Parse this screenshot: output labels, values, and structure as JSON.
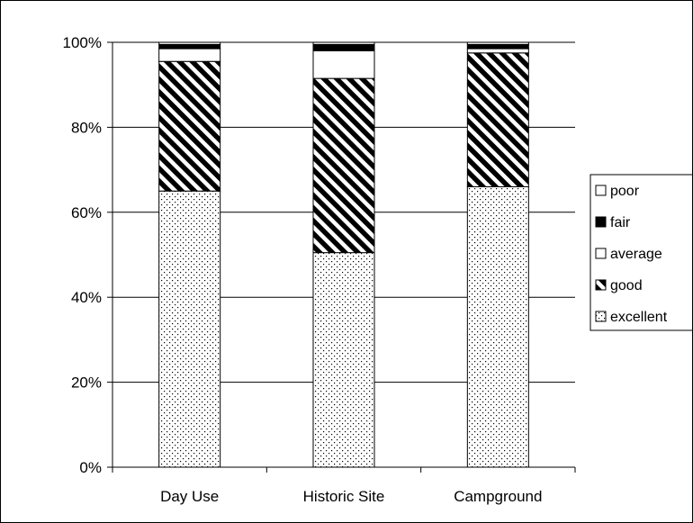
{
  "chart_data": {
    "type": "bar",
    "stacked": true,
    "percent": true,
    "categories": [
      "Day Use",
      "Historic Site",
      "Campground"
    ],
    "series": [
      {
        "name": "excellent",
        "values": [
          65,
          50.5,
          66
        ],
        "pattern": "dots",
        "color": "#ffffff"
      },
      {
        "name": "good",
        "values": [
          30.5,
          41,
          31.5
        ],
        "pattern": "diagonal-stripes",
        "color": "#000000"
      },
      {
        "name": "average",
        "values": [
          3,
          6.5,
          1
        ],
        "pattern": "solid",
        "color": "#ffffff"
      },
      {
        "name": "fair",
        "values": [
          1,
          1.5,
          1
        ],
        "pattern": "solid",
        "color": "#000000"
      },
      {
        "name": "poor",
        "values": [
          0.5,
          0.5,
          0.5
        ],
        "pattern": "solid",
        "color": "#ffffff"
      }
    ],
    "ytick_labels": [
      "0%",
      "20%",
      "40%",
      "60%",
      "80%",
      "100%"
    ],
    "ylim": [
      0,
      100
    ],
    "grid": true,
    "legend_position": "right",
    "legend_order": [
      "poor",
      "fair",
      "average",
      "good",
      "excellent"
    ]
  }
}
